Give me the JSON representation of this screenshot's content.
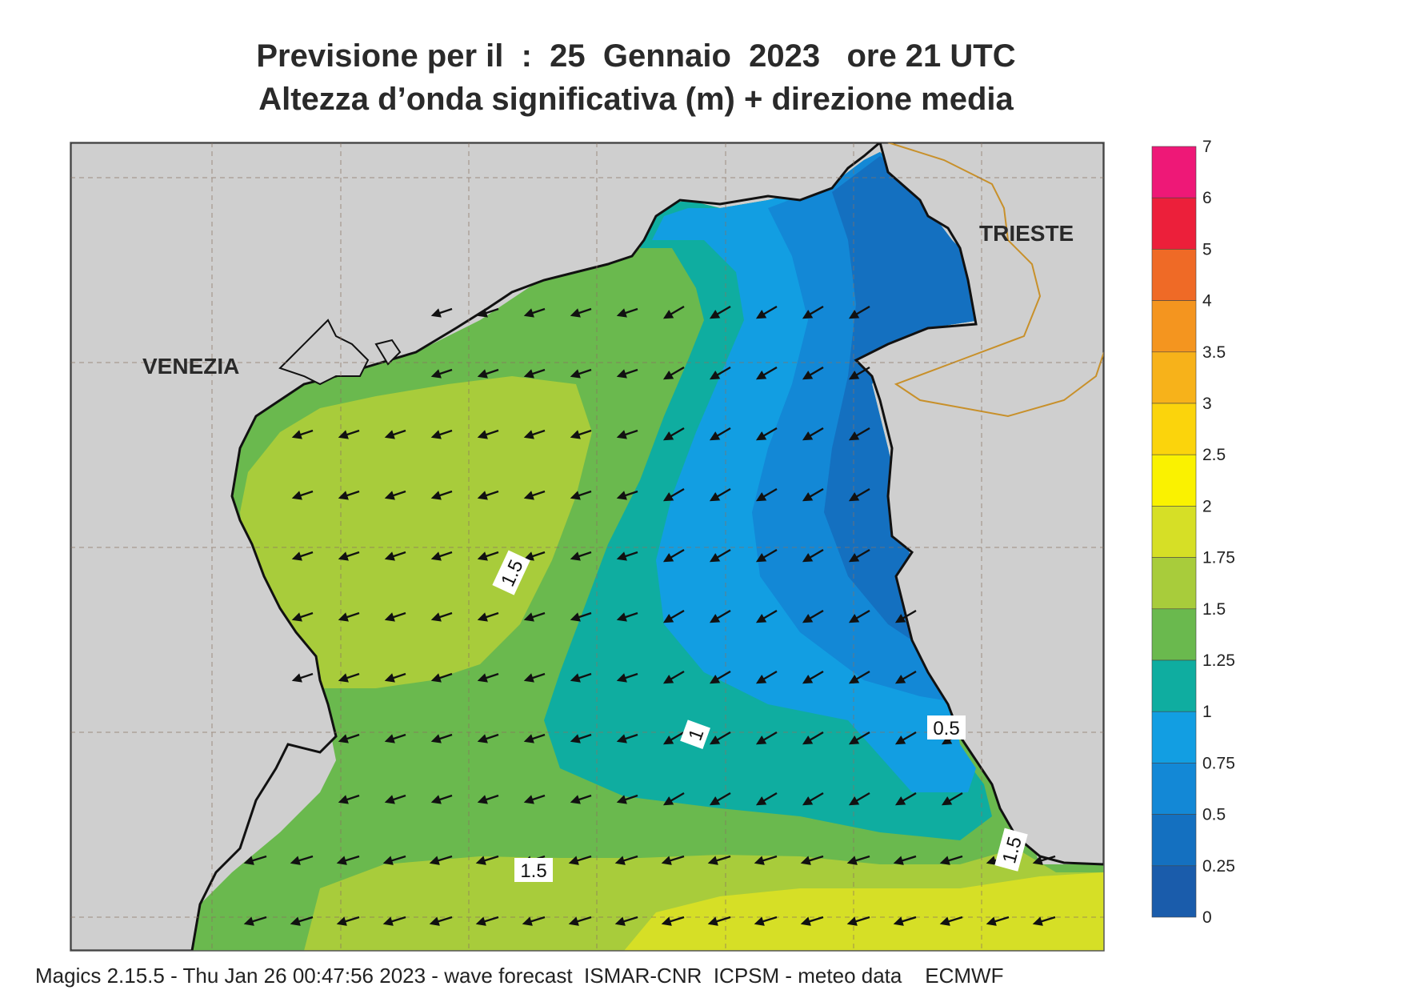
{
  "header": {
    "line1": "Previsione per il  :  25  Gennaio  2023   ore 21 UTC",
    "line2": "Altezza d’onda significativa (m) + direzione media"
  },
  "map": {
    "cities": [
      "VENEZIA",
      "TRIESTE"
    ],
    "contour_labels": [
      "1.5",
      "1",
      "0.5",
      "1.5",
      "1.5"
    ],
    "land_color": "#cfcfcf",
    "coast_color": "#111111",
    "border_color": "#c8902a",
    "wave_direction": "WSW"
  },
  "colorbar": {
    "labels": [
      "7",
      "6",
      "5",
      "4",
      "3.5",
      "3",
      "2.5",
      "2",
      "1.75",
      "1.5",
      "1.25",
      "1",
      "0.75",
      "0.5",
      "0.25",
      "0"
    ],
    "colors": [
      "#ee1877",
      "#ec1f3a",
      "#ef6a26",
      "#f4951f",
      "#f7b21a",
      "#fbd40c",
      "#faf200",
      "#d6df26",
      "#a8cc3b",
      "#6ab94e",
      "#0fada0",
      "#129ee2",
      "#1388d6",
      "#1470c0",
      "#1a5cab"
    ]
  },
  "footer": "Magics 2.15.5 - Thu Jan 26 00:47:56 2023 - wave forecast  ISMAR-CNR  ICPSM - meteo data    ECMWF"
}
